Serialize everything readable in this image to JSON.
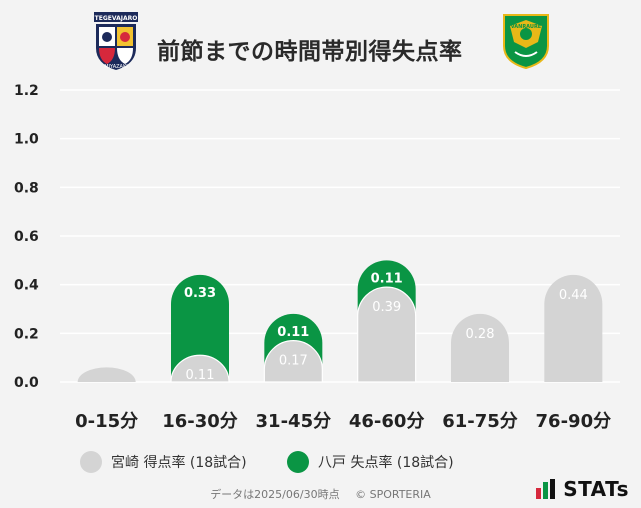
{
  "header": {
    "title": "前節までの時間帯別得失点率"
  },
  "colors": {
    "home": "#d4d4d4",
    "away": "#0a9544",
    "grid": "#ffffff",
    "background": "#f3f3f3"
  },
  "legend": {
    "home_label": "宮崎 得点率 (18試合)",
    "away_label": "八戸 失点率 (18試合)"
  },
  "footer": {
    "data_note": "データは2025/06/30時点",
    "copyright": "© SPORTERIA"
  },
  "brand": {
    "stats_label": "STATs"
  },
  "logos": {
    "home_crest_text_top": "TEGEVAJARO",
    "home_crest_text_bottom": "MIYAZAKI",
    "away_crest_text": "VANRAURE"
  },
  "chart_data": {
    "type": "bar",
    "stacked": true,
    "categories": [
      "0-15分",
      "16-30分",
      "31-45分",
      "46-60分",
      "61-75分",
      "76-90分"
    ],
    "series": [
      {
        "name": "宮崎 得点率 (18試合)",
        "values": [
          0.0,
          0.11,
          0.17,
          0.39,
          0.28,
          0.44
        ],
        "color": "#d4d4d4"
      },
      {
        "name": "八戸 失点率 (18試合)",
        "values": [
          0.0,
          0.33,
          0.11,
          0.11,
          0.0,
          0.0
        ],
        "color": "#0a9544"
      }
    ],
    "ylim": [
      0,
      1.2
    ],
    "yticks": [
      "0.0",
      "0.2",
      "0.4",
      "0.6",
      "0.8",
      "1.0",
      "1.2"
    ],
    "ytick_values": [
      0,
      0.2,
      0.4,
      0.6,
      0.8,
      1.0,
      1.2
    ],
    "grid": true,
    "legend_position": "bottom"
  }
}
